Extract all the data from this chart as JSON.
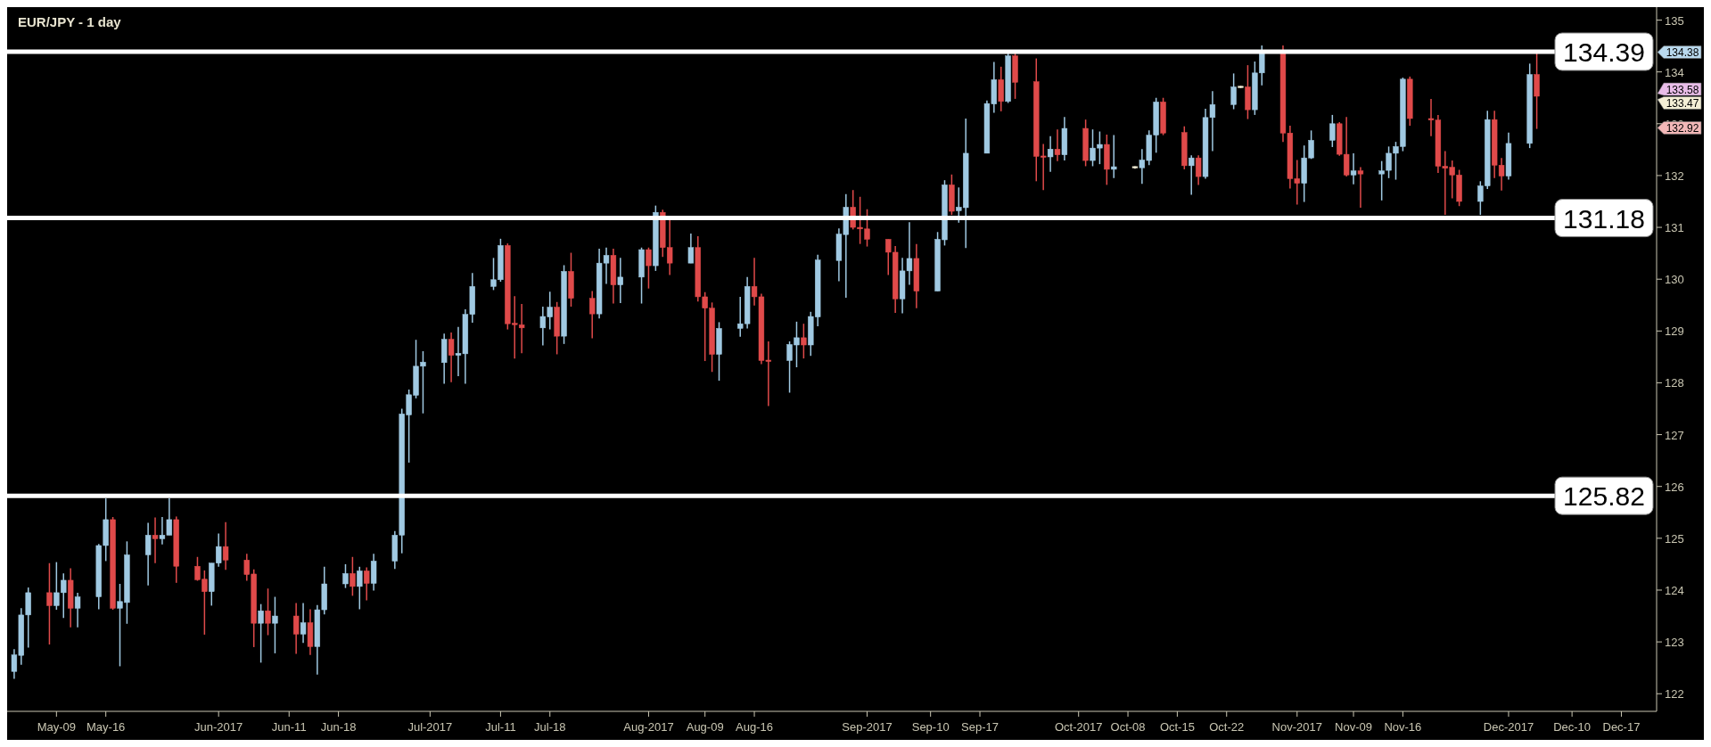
{
  "chart_data": {
    "type": "candlestick",
    "title": "EUR/JPY - 1 day",
    "x": [
      "2017-05-03",
      "2017-05-04",
      "2017-05-05",
      "2017-05-08",
      "2017-05-09",
      "2017-05-10",
      "2017-05-11",
      "2017-05-12",
      "2017-05-15",
      "2017-05-16",
      "2017-05-17",
      "2017-05-18",
      "2017-05-19",
      "2017-05-22",
      "2017-05-23",
      "2017-05-24",
      "2017-05-25",
      "2017-05-26",
      "2017-05-29",
      "2017-05-30",
      "2017-05-31",
      "2017-06-01",
      "2017-06-02",
      "2017-06-05",
      "2017-06-06",
      "2017-06-07",
      "2017-06-08",
      "2017-06-09",
      "2017-06-12",
      "2017-06-13",
      "2017-06-14",
      "2017-06-15",
      "2017-06-16",
      "2017-06-19",
      "2017-06-20",
      "2017-06-21",
      "2017-06-22",
      "2017-06-23",
      "2017-06-26",
      "2017-06-27",
      "2017-06-28",
      "2017-06-29",
      "2017-06-30",
      "2017-07-03",
      "2017-07-04",
      "2017-07-05",
      "2017-07-06",
      "2017-07-07",
      "2017-07-10",
      "2017-07-11",
      "2017-07-12",
      "2017-07-13",
      "2017-07-14",
      "2017-07-17",
      "2017-07-18",
      "2017-07-19",
      "2017-07-20",
      "2017-07-21",
      "2017-07-24",
      "2017-07-25",
      "2017-07-26",
      "2017-07-27",
      "2017-07-28",
      "2017-07-31",
      "2017-08-01",
      "2017-08-02",
      "2017-08-03",
      "2017-08-04",
      "2017-08-07",
      "2017-08-08",
      "2017-08-09",
      "2017-08-10",
      "2017-08-11",
      "2017-08-14",
      "2017-08-15",
      "2017-08-16",
      "2017-08-17",
      "2017-08-18",
      "2017-08-21",
      "2017-08-22",
      "2017-08-23",
      "2017-08-24",
      "2017-08-25",
      "2017-08-28",
      "2017-08-29",
      "2017-08-30",
      "2017-08-31",
      "2017-09-01",
      "2017-09-04",
      "2017-09-05",
      "2017-09-06",
      "2017-09-07",
      "2017-09-08",
      "2017-09-11",
      "2017-09-12",
      "2017-09-13",
      "2017-09-14",
      "2017-09-15",
      "2017-09-18",
      "2017-09-19",
      "2017-09-20",
      "2017-09-21",
      "2017-09-22",
      "2017-09-25",
      "2017-09-26",
      "2017-09-27",
      "2017-09-28",
      "2017-09-29",
      "2017-10-02",
      "2017-10-03",
      "2017-10-04",
      "2017-10-05",
      "2017-10-06",
      "2017-10-09",
      "2017-10-10",
      "2017-10-11",
      "2017-10-12",
      "2017-10-13",
      "2017-10-16",
      "2017-10-17",
      "2017-10-18",
      "2017-10-19",
      "2017-10-20",
      "2017-10-23",
      "2017-10-24",
      "2017-10-25",
      "2017-10-26",
      "2017-10-27",
      "2017-10-30",
      "2017-10-31",
      "2017-11-01",
      "2017-11-02",
      "2017-11-03",
      "2017-11-06",
      "2017-11-07",
      "2017-11-08",
      "2017-11-09",
      "2017-11-10",
      "2017-11-13",
      "2017-11-14",
      "2017-11-15",
      "2017-11-16",
      "2017-11-17",
      "2017-11-20",
      "2017-11-21",
      "2017-11-22",
      "2017-11-23",
      "2017-11-24",
      "2017-11-27",
      "2017-11-28",
      "2017-11-29",
      "2017-11-30",
      "2017-12-01",
      "2017-12-04",
      "2017-12-05"
    ],
    "ohlc": [
      [
        122.43,
        122.86,
        122.29,
        122.75
      ],
      [
        122.74,
        123.65,
        122.56,
        123.52
      ],
      [
        123.52,
        124.05,
        122.89,
        123.95
      ],
      [
        123.95,
        124.52,
        122.95,
        123.7
      ],
      [
        123.7,
        124.54,
        123.62,
        123.95
      ],
      [
        123.95,
        124.32,
        123.46,
        124.19
      ],
      [
        124.19,
        124.42,
        123.28,
        123.65
      ],
      [
        123.65,
        123.95,
        123.28,
        123.87
      ],
      [
        123.87,
        124.89,
        123.63,
        124.86
      ],
      [
        124.86,
        125.77,
        124.56,
        125.36
      ],
      [
        125.36,
        125.41,
        123.62,
        123.65
      ],
      [
        123.65,
        124.12,
        122.53,
        123.78
      ],
      [
        123.76,
        124.94,
        123.35,
        124.68
      ],
      [
        124.68,
        125.3,
        124.09,
        125.06
      ],
      [
        125.06,
        125.4,
        124.52,
        124.99
      ],
      [
        124.99,
        125.41,
        124.88,
        125.06
      ],
      [
        125.06,
        125.77,
        125.06,
        125.36
      ],
      [
        125.36,
        125.42,
        124.14,
        124.46
      ],
      [
        124.46,
        124.64,
        124.18,
        124.2
      ],
      [
        124.21,
        124.38,
        123.14,
        123.97
      ],
      [
        123.97,
        124.52,
        123.7,
        124.52
      ],
      [
        124.52,
        125.09,
        124.45,
        124.84
      ],
      [
        124.84,
        125.31,
        124.39,
        124.58
      ],
      [
        124.58,
        124.7,
        124.18,
        124.3
      ],
      [
        124.31,
        124.4,
        122.9,
        123.36
      ],
      [
        123.36,
        123.73,
        122.6,
        123.6
      ],
      [
        123.6,
        124.03,
        123.13,
        123.36
      ],
      [
        123.36,
        123.87,
        122.78,
        123.5
      ],
      [
        123.5,
        123.75,
        122.77,
        123.15
      ],
      [
        123.15,
        123.75,
        122.98,
        123.37
      ],
      [
        123.37,
        123.63,
        122.75,
        122.91
      ],
      [
        122.91,
        123.71,
        122.37,
        123.62
      ],
      [
        123.62,
        124.45,
        123.53,
        124.12
      ],
      [
        124.12,
        124.5,
        124.04,
        124.32
      ],
      [
        124.32,
        124.64,
        123.89,
        124.07
      ],
      [
        124.07,
        124.45,
        123.63,
        124.37
      ],
      [
        124.37,
        124.44,
        123.8,
        124.13
      ],
      [
        124.13,
        124.7,
        123.99,
        124.56
      ],
      [
        124.56,
        125.14,
        124.41,
        125.06
      ],
      [
        125.06,
        127.5,
        124.71,
        127.4
      ],
      [
        127.38,
        127.87,
        126.46,
        127.77
      ],
      [
        127.76,
        128.83,
        127.7,
        128.32
      ],
      [
        128.32,
        128.61,
        127.41,
        128.4
      ],
      [
        128.39,
        128.95,
        127.98,
        128.84
      ],
      [
        128.84,
        128.97,
        128.01,
        128.53
      ],
      [
        128.53,
        129.08,
        128.13,
        128.57
      ],
      [
        128.56,
        129.42,
        127.98,
        129.32
      ],
      [
        129.32,
        130.12,
        129.16,
        129.86
      ],
      [
        129.86,
        130.41,
        129.79,
        129.99
      ],
      [
        129.99,
        130.78,
        129.95,
        130.65
      ],
      [
        130.65,
        130.69,
        129.03,
        129.14
      ],
      [
        129.14,
        129.67,
        128.47,
        129.13
      ],
      [
        129.12,
        129.52,
        128.57,
        129.06
      ],
      [
        129.06,
        129.47,
        128.72,
        129.28
      ],
      [
        129.27,
        129.76,
        129.03,
        129.46
      ],
      [
        129.46,
        129.56,
        128.55,
        128.9
      ],
      [
        128.9,
        130.27,
        128.75,
        130.15
      ],
      [
        130.15,
        130.51,
        129.47,
        129.63
      ],
      [
        129.63,
        129.77,
        128.86,
        129.33
      ],
      [
        129.33,
        130.59,
        129.24,
        130.31
      ],
      [
        130.31,
        130.61,
        129.91,
        130.46
      ],
      [
        130.46,
        130.59,
        129.53,
        129.89
      ],
      [
        129.89,
        130.41,
        129.54,
        130.04
      ],
      [
        130.04,
        130.61,
        129.53,
        130.57
      ],
      [
        130.57,
        130.61,
        129.82,
        130.26
      ],
      [
        130.26,
        131.42,
        130.16,
        131.29
      ],
      [
        131.29,
        131.34,
        130.43,
        130.61
      ],
      [
        130.61,
        131.17,
        130.08,
        130.31
      ],
      [
        130.31,
        130.88,
        130.31,
        130.61
      ],
      [
        130.61,
        130.83,
        129.57,
        129.66
      ],
      [
        129.66,
        129.75,
        128.42,
        129.44
      ],
      [
        129.44,
        129.55,
        128.21,
        128.55
      ],
      [
        128.55,
        129.17,
        128.04,
        129.05
      ],
      [
        129.05,
        129.66,
        128.89,
        129.14
      ],
      [
        129.14,
        130.04,
        129.05,
        129.86
      ],
      [
        129.86,
        130.41,
        129.49,
        129.66
      ],
      [
        129.66,
        129.72,
        128.36,
        128.43
      ],
      [
        128.43,
        128.8,
        127.55,
        128.42
      ],
      [
        128.43,
        128.8,
        127.81,
        128.74
      ],
      [
        128.73,
        129.18,
        128.3,
        128.87
      ],
      [
        128.87,
        129.14,
        128.47,
        128.73
      ],
      [
        128.73,
        129.37,
        128.52,
        129.28
      ],
      [
        129.27,
        130.47,
        129.09,
        130.37
      ],
      [
        130.36,
        130.98,
        129.96,
        130.87
      ],
      [
        130.86,
        131.64,
        129.64,
        131.39
      ],
      [
        131.39,
        131.72,
        130.96,
        131.0
      ],
      [
        131.0,
        131.59,
        130.68,
        130.97
      ],
      [
        130.97,
        131.35,
        130.63,
        130.77
      ],
      [
        130.77,
        130.77,
        130.08,
        130.52
      ],
      [
        130.52,
        130.64,
        129.35,
        129.62
      ],
      [
        129.62,
        130.41,
        129.34,
        130.16
      ],
      [
        130.16,
        131.1,
        129.89,
        130.4
      ],
      [
        130.4,
        130.68,
        129.44,
        129.77
      ],
      [
        129.77,
        130.91,
        129.77,
        130.77
      ],
      [
        130.76,
        131.91,
        130.65,
        131.82
      ],
      [
        131.82,
        132.02,
        131.24,
        131.31
      ],
      [
        131.32,
        131.77,
        131.09,
        131.39
      ],
      [
        131.38,
        133.1,
        130.6,
        132.43
      ],
      [
        132.43,
        133.45,
        132.43,
        133.39
      ],
      [
        133.38,
        134.19,
        133.21,
        133.85
      ],
      [
        133.85,
        134.1,
        133.24,
        133.43
      ],
      [
        133.43,
        134.36,
        133.4,
        134.31
      ],
      [
        134.31,
        134.36,
        133.48,
        133.8
      ],
      [
        133.81,
        134.26,
        131.89,
        132.37
      ],
      [
        132.37,
        132.61,
        131.72,
        132.36
      ],
      [
        132.36,
        132.76,
        132.07,
        132.51
      ],
      [
        132.51,
        132.89,
        132.28,
        132.4
      ],
      [
        132.4,
        133.13,
        132.29,
        132.91
      ],
      [
        132.91,
        133.08,
        132.18,
        132.29
      ],
      [
        132.29,
        132.89,
        132.18,
        132.53
      ],
      [
        132.53,
        132.85,
        132.22,
        132.6
      ],
      [
        132.6,
        132.79,
        131.82,
        132.12
      ],
      [
        132.12,
        132.78,
        131.95,
        132.17
      ],
      [
        132.16,
        132.18,
        132.13,
        132.16
      ],
      [
        132.15,
        132.51,
        131.84,
        132.3
      ],
      [
        132.29,
        132.87,
        132.2,
        132.78
      ],
      [
        132.78,
        133.5,
        132.44,
        133.42
      ],
      [
        133.42,
        133.5,
        132.78,
        132.82
      ],
      [
        132.83,
        132.95,
        132.12,
        132.19
      ],
      [
        132.19,
        132.39,
        131.63,
        132.34
      ],
      [
        132.34,
        132.39,
        131.82,
        131.98
      ],
      [
        131.98,
        133.29,
        131.94,
        133.12
      ],
      [
        133.12,
        133.63,
        132.47,
        133.37
      ],
      [
        133.37,
        133.97,
        133.28,
        133.71
      ],
      [
        133.71,
        133.73,
        133.69,
        133.71
      ],
      [
        133.71,
        134.13,
        133.09,
        133.27
      ],
      [
        133.27,
        134.2,
        133.17,
        133.98
      ],
      [
        133.98,
        134.51,
        133.74,
        134.36
      ],
      [
        134.36,
        134.51,
        132.65,
        132.82
      ],
      [
        132.82,
        132.96,
        131.75,
        131.94
      ],
      [
        131.94,
        132.3,
        131.44,
        131.85
      ],
      [
        131.85,
        132.58,
        131.49,
        132.34
      ],
      [
        132.34,
        132.87,
        132.32,
        132.68
      ],
      [
        132.68,
        133.17,
        132.55,
        133.0
      ],
      [
        133.0,
        133.03,
        132.38,
        132.41
      ],
      [
        132.41,
        133.13,
        131.98,
        132.01
      ],
      [
        132.01,
        132.43,
        131.83,
        132.09
      ],
      [
        132.09,
        132.16,
        131.38,
        132.03
      ],
      [
        132.03,
        132.28,
        131.52,
        132.09
      ],
      [
        132.1,
        132.56,
        131.95,
        132.43
      ],
      [
        132.43,
        132.65,
        131.92,
        132.56
      ],
      [
        132.56,
        133.89,
        132.47,
        133.86
      ],
      [
        133.86,
        133.91,
        132.96,
        133.1
      ],
      [
        133.1,
        133.48,
        132.76,
        133.07
      ],
      [
        133.07,
        133.17,
        132.05,
        132.18
      ],
      [
        132.18,
        132.47,
        131.24,
        132.14
      ],
      [
        132.16,
        132.29,
        131.56,
        132.01
      ],
      [
        132.01,
        132.11,
        131.41,
        131.5
      ],
      [
        131.5,
        131.89,
        131.24,
        131.8
      ],
      [
        131.8,
        133.25,
        131.74,
        133.08
      ],
      [
        133.08,
        133.25,
        131.95,
        132.2
      ],
      [
        132.2,
        132.34,
        131.71,
        131.99
      ],
      [
        131.99,
        132.83,
        131.92,
        132.62
      ],
      [
        132.62,
        134.16,
        132.53,
        133.95
      ],
      [
        133.95,
        134.37,
        132.9,
        133.53
      ]
    ],
    "xlim": [
      "2017-05-02",
      "2017-12-22"
    ],
    "xticks": [
      {
        "value": "2017-05-09",
        "label": "May-09"
      },
      {
        "value": "2017-05-16",
        "label": "May-16"
      },
      {
        "value": "2017-06-01",
        "label": "Jun-2017"
      },
      {
        "value": "2017-06-11",
        "label": "Jun-11"
      },
      {
        "value": "2017-06-18",
        "label": "Jun-18"
      },
      {
        "value": "2017-07-01",
        "label": "Jul-2017"
      },
      {
        "value": "2017-07-11",
        "label": "Jul-11"
      },
      {
        "value": "2017-07-18",
        "label": "Jul-18"
      },
      {
        "value": "2017-08-01",
        "label": "Aug-2017"
      },
      {
        "value": "2017-08-09",
        "label": "Aug-09"
      },
      {
        "value": "2017-08-16",
        "label": "Aug-16"
      },
      {
        "value": "2017-09-01",
        "label": "Sep-2017"
      },
      {
        "value": "2017-09-10",
        "label": "Sep-10"
      },
      {
        "value": "2017-09-17",
        "label": "Sep-17"
      },
      {
        "value": "2017-10-01",
        "label": "Oct-2017"
      },
      {
        "value": "2017-10-08",
        "label": "Oct-08"
      },
      {
        "value": "2017-10-15",
        "label": "Oct-15"
      },
      {
        "value": "2017-10-22",
        "label": "Oct-22"
      },
      {
        "value": "2017-11-01",
        "label": "Nov-2017"
      },
      {
        "value": "2017-11-09",
        "label": "Nov-09"
      },
      {
        "value": "2017-11-16",
        "label": "Nov-16"
      },
      {
        "value": "2017-12-01",
        "label": "Dec-2017"
      },
      {
        "value": "2017-12-10",
        "label": "Dec-10"
      },
      {
        "value": "2017-12-17",
        "label": "Dec-17"
      }
    ],
    "ylim": [
      121.66,
      135.25
    ],
    "yticks": [
      122,
      123,
      124,
      125,
      126,
      127,
      128,
      129,
      130,
      131,
      132,
      133,
      134,
      135
    ],
    "ref_lines": [
      {
        "axis": "y",
        "value": 134.39,
        "label": "134.39",
        "color": "#ffffff"
      },
      {
        "axis": "y",
        "value": 131.18,
        "label": "131.18",
        "color": "#ffffff"
      },
      {
        "axis": "y",
        "value": 125.82,
        "label": "125.82",
        "color": "#ffffff"
      }
    ],
    "annotations": [
      "134.38",
      "133.58",
      "133.47",
      "132.92"
    ]
  }
}
